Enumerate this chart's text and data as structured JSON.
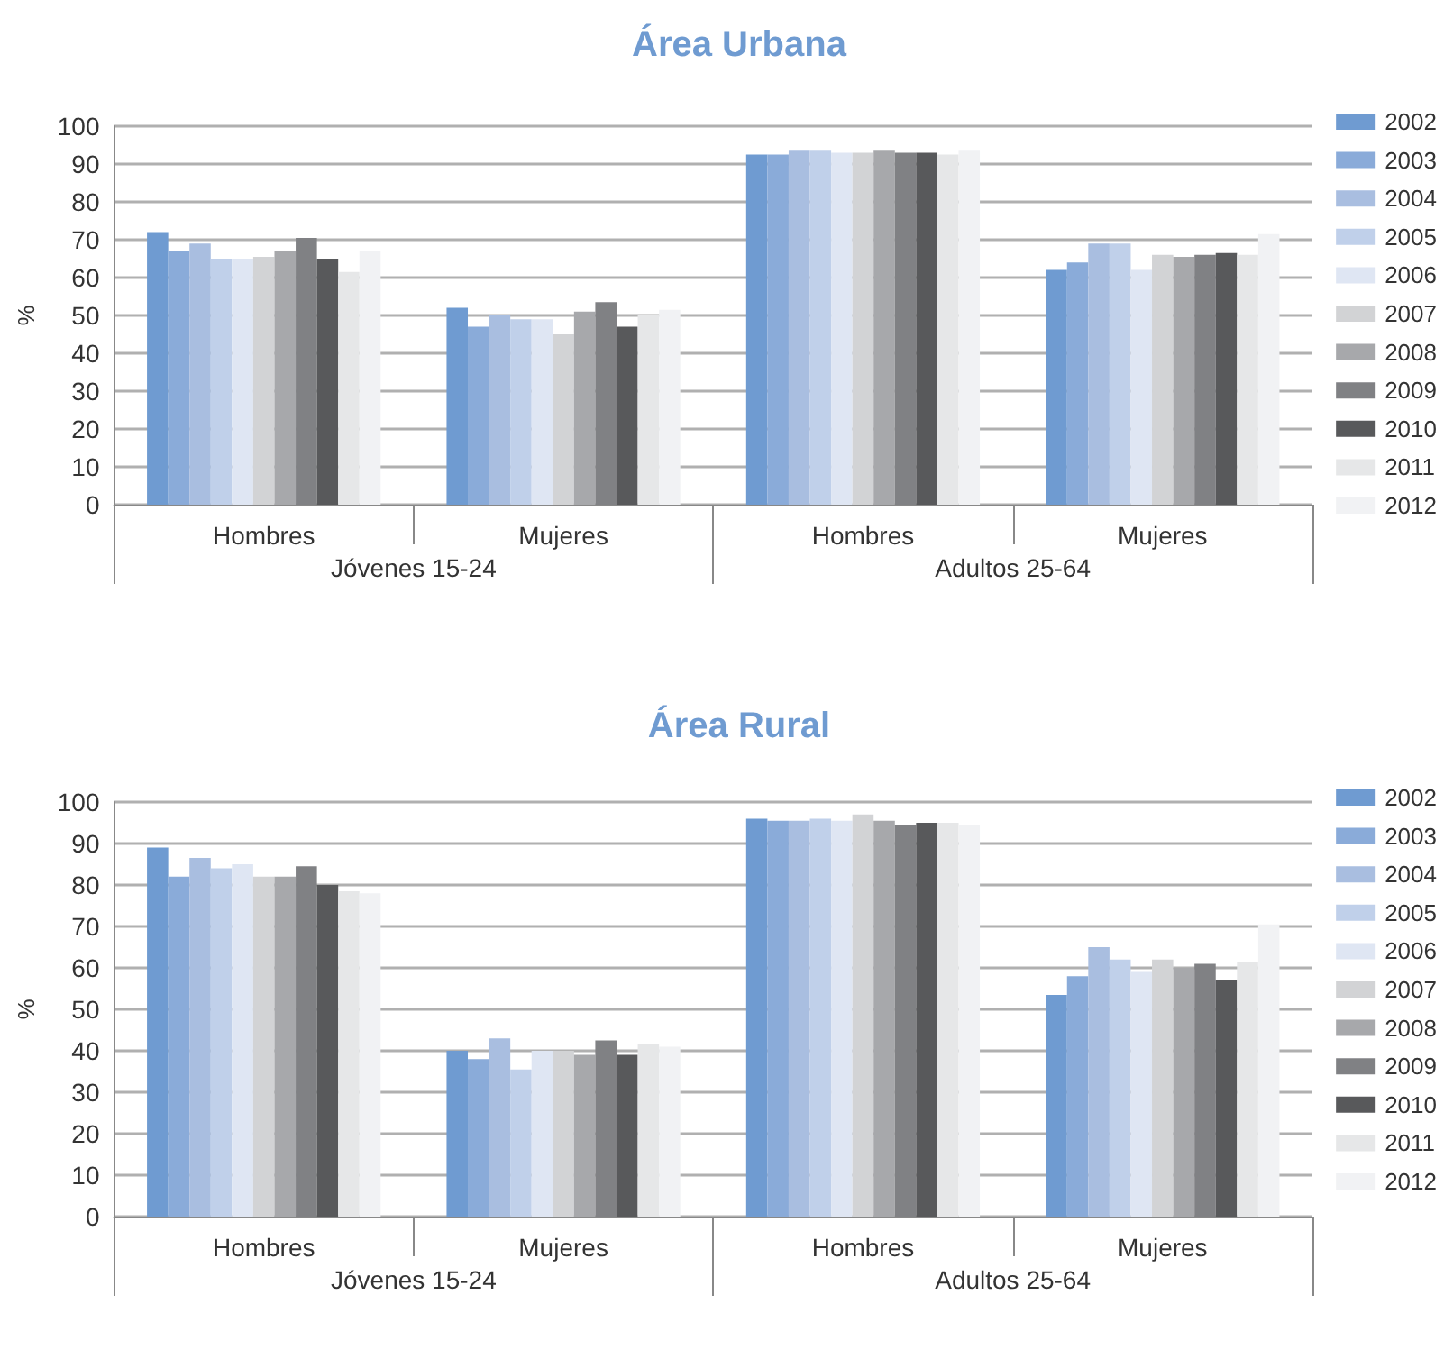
{
  "chart_data": [
    {
      "type": "bar",
      "title": "Área Urbana",
      "ylabel": "%",
      "categories": [
        "Hombres",
        "Mujeres",
        "Hombres",
        "Mujeres"
      ],
      "annotations": [
        "Jóvenes 15-24",
        "Adultos 25-64"
      ],
      "ylim": [
        0,
        100
      ],
      "yticks": [
        0,
        10,
        20,
        30,
        40,
        50,
        60,
        70,
        80,
        90,
        100
      ],
      "grid": "y",
      "legend": "right",
      "series": [
        {
          "name": "2002",
          "color": "#6f9bd1",
          "values": [
            72,
            52,
            92.5,
            62
          ]
        },
        {
          "name": "2003",
          "color": "#8aabd9",
          "values": [
            67,
            47,
            92.5,
            64
          ]
        },
        {
          "name": "2004",
          "color": "#a9bee0",
          "values": [
            69,
            50,
            93.5,
            69
          ]
        },
        {
          "name": "2005",
          "color": "#c0d0ea",
          "values": [
            65,
            49,
            93.5,
            69
          ]
        },
        {
          "name": "2006",
          "color": "#dfe6f3",
          "values": [
            65,
            49,
            93,
            62
          ]
        },
        {
          "name": "2007",
          "color": "#d2d3d5",
          "values": [
            65.5,
            45,
            93,
            66
          ]
        },
        {
          "name": "2008",
          "color": "#a7a8ab",
          "values": [
            67,
            51,
            93.5,
            65.5
          ]
        },
        {
          "name": "2009",
          "color": "#808184",
          "values": [
            70.5,
            53.5,
            93,
            66
          ]
        },
        {
          "name": "2010",
          "color": "#58595b",
          "values": [
            65,
            47,
            93,
            66.5
          ]
        },
        {
          "name": "2011",
          "color": "#e6e7e8",
          "values": [
            61.5,
            50,
            92.5,
            66
          ]
        },
        {
          "name": "2012",
          "color": "#f1f2f4",
          "values": [
            67,
            51.5,
            93.5,
            71.5
          ]
        }
      ]
    },
    {
      "type": "bar",
      "title": "Área Rural",
      "ylabel": "%",
      "categories": [
        "Hombres",
        "Mujeres",
        "Hombres",
        "Mujeres"
      ],
      "annotations": [
        "Jóvenes 15-24",
        "Adultos 25-64"
      ],
      "ylim": [
        0,
        100
      ],
      "yticks": [
        0,
        10,
        20,
        30,
        40,
        50,
        60,
        70,
        80,
        90,
        100
      ],
      "grid": "y",
      "legend": "right",
      "series": [
        {
          "name": "2002",
          "color": "#6f9bd1",
          "values": [
            89,
            40,
            96,
            53.5
          ]
        },
        {
          "name": "2003",
          "color": "#8aabd9",
          "values": [
            82,
            38,
            95.5,
            58
          ]
        },
        {
          "name": "2004",
          "color": "#a9bee0",
          "values": [
            86.5,
            43,
            95.5,
            65
          ]
        },
        {
          "name": "2005",
          "color": "#c0d0ea",
          "values": [
            84,
            35.5,
            96,
            62
          ]
        },
        {
          "name": "2006",
          "color": "#dfe6f3",
          "values": [
            85,
            40,
            95.5,
            59
          ]
        },
        {
          "name": "2007",
          "color": "#d2d3d5",
          "values": [
            82,
            40,
            97,
            62
          ]
        },
        {
          "name": "2008",
          "color": "#a7a8ab",
          "values": [
            82,
            39,
            95.5,
            60
          ]
        },
        {
          "name": "2009",
          "color": "#808184",
          "values": [
            84.5,
            42.5,
            94.5,
            61
          ]
        },
        {
          "name": "2010",
          "color": "#58595b",
          "values": [
            80,
            39,
            95,
            57
          ]
        },
        {
          "name": "2011",
          "color": "#e6e7e8",
          "values": [
            78.5,
            41.5,
            95,
            61.5
          ]
        },
        {
          "name": "2012",
          "color": "#f1f2f4",
          "values": [
            78,
            41,
            94.5,
            70.5
          ]
        }
      ]
    }
  ]
}
